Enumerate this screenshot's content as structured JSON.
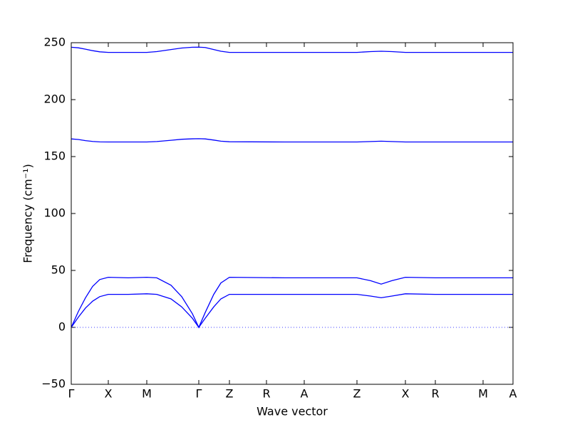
{
  "chart_data": {
    "type": "line",
    "xlabel": "Wave vector",
    "ylabel": "Frequency (cm⁻¹)",
    "x": [
      0,
      0.1,
      0.2,
      0.3,
      0.4,
      0.52,
      0.8,
      1.06,
      1.2,
      1.4,
      1.55,
      1.7,
      1.79,
      1.88,
      2.0,
      2.1,
      2.22,
      3.0,
      4.01,
      4.2,
      4.35,
      4.5,
      4.69,
      5.11,
      5.78,
      6.2
    ],
    "series": [
      {
        "color": "#0000ff",
        "values": [
          0,
          9,
          17,
          23,
          27,
          29,
          29,
          29.5,
          29,
          25,
          18,
          8,
          0,
          8,
          18,
          25,
          29,
          29,
          29,
          27.5,
          26,
          27.5,
          29.5,
          29,
          29,
          29
        ]
      },
      {
        "color": "#0000ff",
        "values": [
          0,
          14,
          26,
          36,
          42,
          44,
          43.5,
          44,
          43.5,
          37,
          27,
          12,
          0,
          13,
          29,
          39,
          44,
          43.5,
          43.5,
          41,
          38,
          41,
          44,
          43.5,
          43.5,
          43.5
        ]
      },
      {
        "color": "#0000ff",
        "values": [
          165.5,
          165,
          164,
          163.3,
          162.9,
          162.8,
          162.8,
          162.8,
          163.2,
          164.3,
          165.2,
          165.6,
          165.7,
          165.5,
          164.5,
          163.5,
          163,
          162.8,
          162.8,
          163.2,
          163.5,
          163.2,
          162.8,
          162.8,
          162.8,
          162.8
        ]
      },
      {
        "color": "#0000ff",
        "values": [
          246,
          245.5,
          244.3,
          243,
          242,
          241.5,
          241.5,
          241.5,
          242.2,
          244,
          245.3,
          246,
          246.1,
          245.8,
          244,
          242.5,
          241.5,
          241.5,
          241.5,
          242.2,
          242.5,
          242.2,
          241.5,
          241.5,
          241.5,
          241.5
        ]
      }
    ],
    "xlim": [
      0,
      6.2
    ],
    "xticks": [
      {
        "value": 0,
        "label": "Γ"
      },
      {
        "value": 0.52,
        "label": "X"
      },
      {
        "value": 1.06,
        "label": "M"
      },
      {
        "value": 1.79,
        "label": "Γ"
      },
      {
        "value": 2.22,
        "label": "Z"
      },
      {
        "value": 2.74,
        "label": "R"
      },
      {
        "value": 3.27,
        "label": "A"
      },
      {
        "value": 4.01,
        "label": "Z"
      },
      {
        "value": 4.69,
        "label": "X"
      },
      {
        "value": 5.11,
        "label": "R"
      },
      {
        "value": 5.78,
        "label": "M"
      },
      {
        "value": 6.2,
        "label": "A"
      }
    ],
    "ylim": [
      -50,
      250
    ],
    "yticks": [
      {
        "value": -50,
        "label": "−50"
      },
      0,
      50,
      100,
      150,
      200,
      250
    ],
    "hline": 0
  }
}
